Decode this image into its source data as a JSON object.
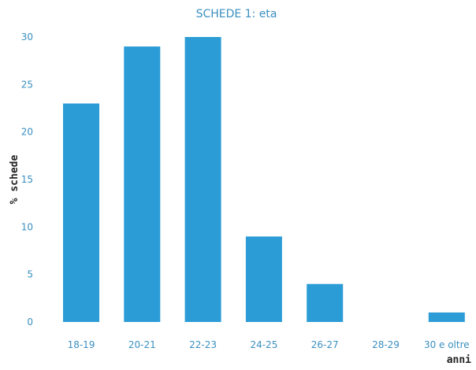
{
  "chart_data": {
    "type": "bar",
    "title": "SCHEDE 1: eta",
    "xlabel": "anni",
    "ylabel": "% schede",
    "categories": [
      "18-19",
      "20-21",
      "22-23",
      "24-25",
      "26-27",
      "28-29",
      "30 e oltre"
    ],
    "values": [
      23,
      29,
      30,
      9,
      4,
      0,
      1
    ],
    "yticks": [
      "0",
      "5",
      "10",
      "15",
      "20",
      "25",
      "30"
    ],
    "ylim": [
      0,
      30
    ],
    "grid": false,
    "legend": "none",
    "bar_color": "#2b9cd6",
    "text_color": "#3a8fc0"
  }
}
